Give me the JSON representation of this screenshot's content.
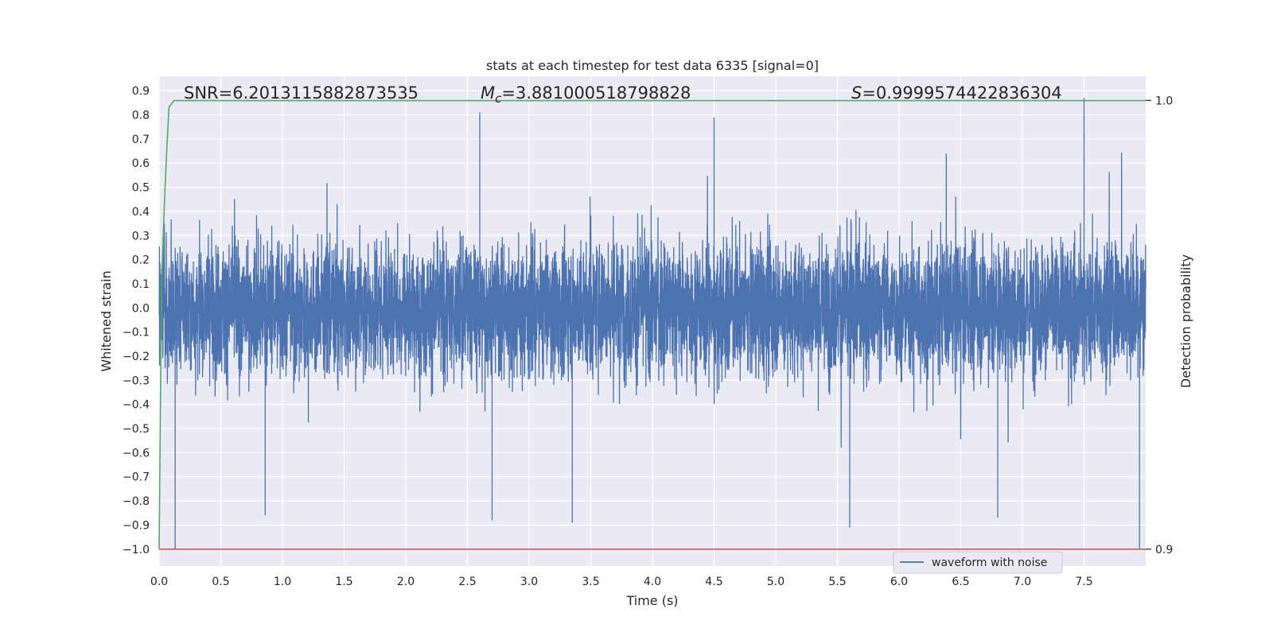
{
  "chart_data": {
    "type": "line",
    "title": "stats at each timestep for test data 6335 [signal=0]",
    "xlabel": "Time (s)",
    "ylabel": "Whitened strain",
    "y2label": "Detection probability",
    "xlim": [
      0.0,
      8.0
    ],
    "ylim": [
      -1.07,
      0.96
    ],
    "y2lim": [
      0.9,
      1.0
    ],
    "x_ticks": [
      "0.0",
      "0.5",
      "1.0",
      "1.5",
      "2.0",
      "2.5",
      "3.0",
      "3.5",
      "4.0",
      "4.5",
      "5.0",
      "5.5",
      "6.0",
      "6.5",
      "7.0",
      "7.5"
    ],
    "y_ticks": [
      "0.9",
      "0.8",
      "0.7",
      "0.6",
      "0.5",
      "0.4",
      "0.3",
      "0.2",
      "0.1",
      "0.0",
      "−0.1",
      "−0.2",
      "−0.3",
      "−0.4",
      "−0.5",
      "−0.6",
      "−0.7",
      "−0.8",
      "−0.9",
      "−1.0"
    ],
    "y2_ticks": [
      "1.0",
      "0.9"
    ],
    "grid": true,
    "legend": {
      "placement": "lower-right",
      "entries": [
        "waveform with noise"
      ]
    },
    "annotations": {
      "snr": "SNR=6.2013115882873535",
      "mc_symbol": "M",
      "mc_sub": "c",
      "mc_value": "=3.881000518798828",
      "s_symbol": "S",
      "s_value": "=0.9999574422836304"
    },
    "series": [
      {
        "name": "waveform with noise",
        "color": "#4c72b0",
        "axis": "left",
        "x_range": [
          0.0,
          8.0
        ],
        "typical_amplitude": 0.2,
        "min": -1.0,
        "max": 0.87,
        "peaks": [
          {
            "x": 0.13,
            "y": -1.0
          },
          {
            "x": 0.86,
            "y": -0.86
          },
          {
            "x": 2.7,
            "y": -0.88
          },
          {
            "x": 2.6,
            "y": 0.81
          },
          {
            "x": 3.35,
            "y": -0.89
          },
          {
            "x": 4.5,
            "y": 0.79
          },
          {
            "x": 5.6,
            "y": -0.91
          },
          {
            "x": 6.8,
            "y": -0.87
          },
          {
            "x": 7.5,
            "y": 0.87
          },
          {
            "x": 7.95,
            "y": -1.0
          }
        ]
      },
      {
        "name": "",
        "color": "#55a868",
        "axis": "right",
        "x": [
          0.0,
          0.02,
          0.04,
          0.06,
          0.08,
          0.12,
          8.0
        ],
        "y": [
          0.9,
          0.96,
          0.975,
          0.988,
          0.9985,
          0.99996,
          0.99996
        ]
      },
      {
        "name": "",
        "color": "#c44e52",
        "axis": "right",
        "x": [
          0.0,
          8.0
        ],
        "y": [
          0.9,
          0.9
        ]
      }
    ]
  }
}
